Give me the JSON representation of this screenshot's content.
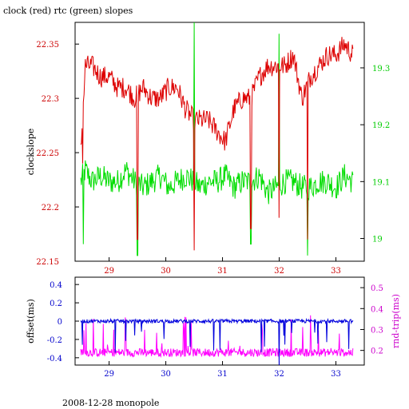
{
  "chart_data": [
    {
      "type": "line",
      "title": "clock (red) rtc (green) slopes",
      "ylabel": "clockslope",
      "x_ticks": [
        "29",
        "30",
        "31",
        "32",
        "33"
      ],
      "xlim": [
        28.4,
        33.5
      ],
      "left_axis": {
        "ticks": [
          "22.15",
          "22.2",
          "22.25",
          "22.3",
          "22.35"
        ],
        "ylim": [
          22.15,
          22.37
        ],
        "color": "#cc0000"
      },
      "right_axis": {
        "ticks": [
          "19",
          "19.1",
          "19.2",
          "19.3"
        ],
        "ylim": [
          18.96,
          19.38
        ],
        "color": "#00cc00"
      },
      "series": [
        {
          "color": "#dd0000",
          "axis": "left",
          "x": [
            28.5,
            28.58,
            28.7,
            28.85,
            29.0,
            29.15,
            29.3,
            29.45,
            29.6,
            29.75,
            29.9,
            30.05,
            30.2,
            30.35,
            30.5,
            30.6,
            30.75,
            30.9,
            31.05,
            31.2,
            31.35,
            31.5,
            31.65,
            31.8,
            31.95,
            32.1,
            32.25,
            32.4,
            32.55,
            32.7,
            32.85,
            33.0,
            33.15,
            33.3
          ],
          "values": [
            22.25,
            22.33,
            22.33,
            22.32,
            22.32,
            22.31,
            22.31,
            22.3,
            22.31,
            22.3,
            22.3,
            22.31,
            22.31,
            22.29,
            22.28,
            22.28,
            22.28,
            22.27,
            22.26,
            22.29,
            22.3,
            22.3,
            22.32,
            22.33,
            22.33,
            22.33,
            22.34,
            22.3,
            22.32,
            22.33,
            22.34,
            22.34,
            22.35,
            22.34
          ]
        },
        {
          "color": "#00dd00",
          "axis": "right",
          "x": [
            28.5,
            28.58,
            28.7,
            28.85,
            29.0,
            29.15,
            29.3,
            29.45,
            29.6,
            29.75,
            29.9,
            30.05,
            30.2,
            30.35,
            30.5,
            30.6,
            30.75,
            30.9,
            31.05,
            31.2,
            31.35,
            31.5,
            31.65,
            31.8,
            31.95,
            32.1,
            32.25,
            32.4,
            32.55,
            32.7,
            32.85,
            33.0,
            33.15,
            33.3
          ],
          "values": [
            19.1,
            19.12,
            19.1,
            19.11,
            19.1,
            19.1,
            19.12,
            19.1,
            19.09,
            19.1,
            19.11,
            19.09,
            19.1,
            19.11,
            19.1,
            19.09,
            19.1,
            19.1,
            19.11,
            19.09,
            19.1,
            19.1,
            19.11,
            19.08,
            19.09,
            19.1,
            19.1,
            19.09,
            19.09,
            19.1,
            19.1,
            19.09,
            19.11,
            19.1
          ]
        }
      ]
    },
    {
      "type": "line",
      "ylabel_left": "offset(ms)",
      "ylabel_right": "rnd-trip(ms)",
      "x_ticks": [
        "29",
        "30",
        "31",
        "32",
        "33"
      ],
      "xlim": [
        28.4,
        33.5
      ],
      "left_axis": {
        "ticks": [
          "0.4",
          "0.2",
          "0",
          "-0.2",
          "-0.4"
        ],
        "ylim": [
          -0.48,
          0.48
        ],
        "color": "#0000cc"
      },
      "right_axis": {
        "ticks": [
          "0.5",
          "0.4",
          "0.3",
          "0.2"
        ],
        "ylim": [
          0.13,
          0.55
        ],
        "color": "#cc00cc"
      },
      "series": [
        {
          "color": "#0000dd",
          "axis": "left",
          "baseline": 0.0
        },
        {
          "color": "#ff00ff",
          "axis": "right",
          "baseline": 0.19
        }
      ]
    }
  ],
  "footer": {
    "text": "2008-12-28 monopole"
  }
}
